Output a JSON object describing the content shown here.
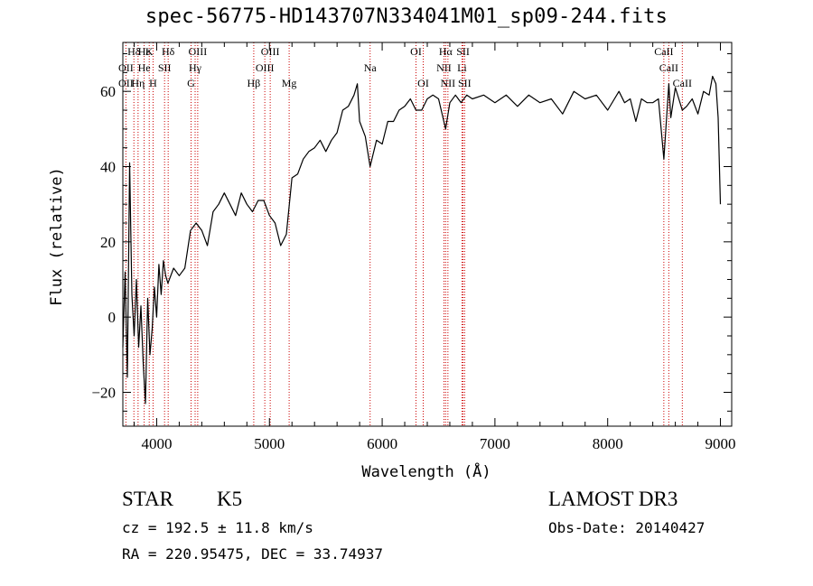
{
  "title": "spec-56775-HD143707N334041M01_sp09-244.fits",
  "chart_data": {
    "type": "line",
    "xlabel": "Wavelength (Å)",
    "ylabel": "Flux (relative)",
    "xlim": [
      3700,
      9100
    ],
    "ylim": [
      -29,
      73
    ],
    "xticks": [
      4000,
      5000,
      6000,
      7000,
      8000,
      9000
    ],
    "yticks": [
      -20,
      0,
      20,
      40,
      60
    ],
    "series": [
      {
        "x": [
          3700,
          3720,
          3740,
          3760,
          3780,
          3800,
          3820,
          3840,
          3860,
          3880,
          3900,
          3920,
          3940,
          3960,
          3980,
          4000,
          4020,
          4040,
          4060,
          4080,
          4100,
          4150,
          4200,
          4250,
          4300,
          4350,
          4400,
          4450,
          4500,
          4550,
          4600,
          4650,
          4700,
          4750,
          4800,
          4850,
          4900,
          4950,
          5000,
          5050,
          5100,
          5150,
          5200,
          5250,
          5300,
          5350,
          5400,
          5450,
          5500,
          5550,
          5600,
          5650,
          5700,
          5750,
          5780,
          5800,
          5850,
          5893,
          5950,
          6000,
          6050,
          6100,
          6150,
          6200,
          6250,
          6300,
          6350,
          6400,
          6450,
          6500,
          6563,
          6600,
          6650,
          6700,
          6750,
          6800,
          6900,
          7000,
          7100,
          7200,
          7300,
          7400,
          7500,
          7600,
          7700,
          7800,
          7900,
          8000,
          8100,
          8150,
          8200,
          8250,
          8300,
          8350,
          8400,
          8450,
          8498,
          8542,
          8560,
          8600,
          8662,
          8700,
          8750,
          8800,
          8850,
          8900,
          8930,
          8960,
          8980,
          9000
        ],
        "y": [
          -8,
          12,
          -16,
          41,
          6,
          -5,
          10,
          -8,
          3,
          -12,
          -23,
          5,
          -10,
          -3,
          8,
          0,
          14,
          6,
          15,
          11,
          9,
          13,
          11,
          13,
          23,
          25,
          23,
          19,
          28,
          30,
          33,
          30,
          27,
          33,
          30,
          28,
          31,
          31,
          27,
          25,
          19,
          22,
          37,
          38,
          42,
          44,
          45,
          47,
          44,
          47,
          49,
          55,
          56,
          59,
          62,
          52,
          48,
          40,
          47,
          46,
          52,
          52,
          55,
          56,
          58,
          55,
          55,
          58,
          59,
          58,
          50,
          57,
          59,
          57,
          59,
          58,
          59,
          57,
          59,
          56,
          59,
          57,
          58,
          54,
          60,
          58,
          59,
          55,
          60,
          57,
          58,
          52,
          58,
          57,
          57,
          58,
          42,
          62,
          53,
          61,
          55,
          56,
          58,
          54,
          60,
          59,
          64,
          62,
          53,
          30
        ]
      }
    ],
    "lines_top": [
      {
        "label": "Hδ",
        "wl": 3798
      },
      {
        "label": "Hε",
        "wl": 3889
      },
      {
        "label": "K",
        "wl": 3934
      },
      {
        "label": "Hδ",
        "wl": 4102
      },
      {
        "label": "OIII",
        "wl": 4364
      },
      {
        "label": "OIII",
        "wl": 5007
      },
      {
        "label": "OI",
        "wl": 6300
      },
      {
        "label": "Hα",
        "wl": 6563
      },
      {
        "label": "SII",
        "wl": 6717
      },
      {
        "label": "CaII",
        "wl": 8498
      }
    ],
    "lines_mid": [
      {
        "label": "OII",
        "wl": 3727
      },
      {
        "label": "He",
        "wl": 3889
      },
      {
        "label": "SII",
        "wl": 4070
      },
      {
        "label": "Hγ",
        "wl": 4341
      },
      {
        "label": "OIII",
        "wl": 4959
      },
      {
        "label": "Na",
        "wl": 5893
      },
      {
        "label": "NII",
        "wl": 6548
      },
      {
        "label": "Li",
        "wl": 6708
      },
      {
        "label": "CaII",
        "wl": 8542
      }
    ],
    "lines_low": [
      {
        "label": "OII",
        "wl": 3727
      },
      {
        "label": "Hη",
        "wl": 3835
      },
      {
        "label": "H",
        "wl": 3968
      },
      {
        "label": "G",
        "wl": 4305
      },
      {
        "label": "Hβ",
        "wl": 4861
      },
      {
        "label": "Mg",
        "wl": 5175
      },
      {
        "label": "OI",
        "wl": 6364
      },
      {
        "label": "NII",
        "wl": 6583
      },
      {
        "label": "SII",
        "wl": 6731
      },
      {
        "label": "CaII",
        "wl": 8662
      }
    ]
  },
  "info": {
    "class_label": "STAR",
    "subclass": "K5",
    "survey": "LAMOST DR3",
    "cz": "cz = 192.5 ± 11.8 km/s",
    "obs_date": "Obs-Date: 20140427",
    "coords": "RA = 220.95475, DEC =  33.74937"
  }
}
